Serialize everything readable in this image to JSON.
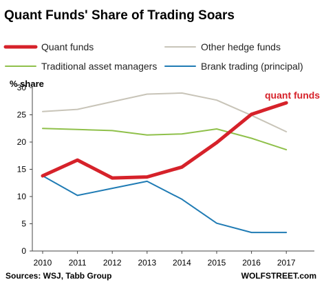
{
  "chart_data": {
    "type": "line",
    "title": "Quant Funds' Share of Trading Soars",
    "ylabel": "% share",
    "ylim": [
      0,
      30
    ],
    "yticks": [
      0,
      5,
      10,
      15,
      20,
      25,
      30
    ],
    "x": [
      "2010",
      "2011",
      "2012",
      "2013",
      "2014",
      "2015",
      "2016",
      "2017"
    ],
    "grid": false,
    "legend_position": "top",
    "series": [
      {
        "name": "Quant funds",
        "color": "#d6222a",
        "values": [
          13.8,
          16.7,
          13.4,
          13.6,
          15.4,
          19.9,
          25.1,
          27.2
        ]
      },
      {
        "name": "Other hedge funds",
        "color": "#c8c4b8",
        "values": [
          25.6,
          26.0,
          27.4,
          28.8,
          29.0,
          27.7,
          24.9,
          21.9
        ]
      },
      {
        "name": "Traditional asset managers",
        "color": "#8fc04a",
        "values": [
          22.5,
          22.3,
          22.1,
          21.3,
          21.5,
          22.4,
          20.7,
          18.6
        ]
      },
      {
        "name": "Brank trading (principal)",
        "color": "#1f7bb4",
        "values": [
          13.8,
          10.2,
          11.5,
          12.8,
          9.5,
          5.1,
          3.4,
          3.4
        ]
      }
    ],
    "annotation": {
      "text": "quant funds",
      "color": "#d6222a"
    },
    "source": "Sources: WSJ, Tabb Group",
    "credit": "WOLFSTREET.com"
  }
}
